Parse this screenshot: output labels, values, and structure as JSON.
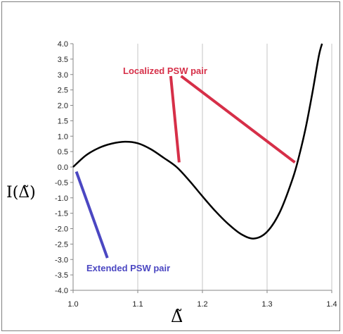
{
  "chart_data": {
    "type": "line",
    "title": "",
    "xlabel": "Δ̃",
    "ylabel": "I(Δ̃)",
    "xlim": [
      1.0,
      1.4
    ],
    "ylim": [
      -4.0,
      4.0
    ],
    "x_ticks": [
      "1.0",
      "1.1",
      "1.2",
      "1.3",
      "1.4"
    ],
    "y_ticks": [
      "4.0",
      "3.5",
      "3.0",
      "2.5",
      "2.0",
      "1.5",
      "1.0",
      "0.5",
      "0.0",
      "-0.5",
      "-1.0",
      "-1.5",
      "-2.0",
      "-2.5",
      "-3.0",
      "-3.5",
      "-4.0"
    ],
    "grid": "vertical",
    "line_color": "#000000",
    "series": [
      {
        "points": [
          [
            1.0,
            0.0
          ],
          [
            1.02,
            0.38
          ],
          [
            1.04,
            0.62
          ],
          [
            1.06,
            0.76
          ],
          [
            1.08,
            0.82
          ],
          [
            1.1,
            0.77
          ],
          [
            1.12,
            0.58
          ],
          [
            1.14,
            0.3
          ],
          [
            1.16,
            0.0
          ],
          [
            1.18,
            -0.45
          ],
          [
            1.2,
            -0.95
          ],
          [
            1.22,
            -1.43
          ],
          [
            1.24,
            -1.85
          ],
          [
            1.26,
            -2.18
          ],
          [
            1.28,
            -2.32
          ],
          [
            1.3,
            -2.1
          ],
          [
            1.32,
            -1.45
          ],
          [
            1.34,
            -0.35
          ],
          [
            1.35,
            0.4
          ],
          [
            1.36,
            1.3
          ],
          [
            1.37,
            2.4
          ],
          [
            1.38,
            3.6
          ],
          [
            1.385,
            4.0
          ]
        ]
      }
    ],
    "annotations": [
      {
        "text": "Localized PSW pair",
        "color": "#d62f48",
        "pointers": [
          {
            "from": [
              1.151,
              2.95
            ],
            "to": [
              1.164,
              0.15
            ]
          },
          {
            "from": [
              1.167,
              2.95
            ],
            "to": [
              1.343,
              0.15
            ]
          }
        ]
      },
      {
        "text": "Extended PSW pair",
        "color": "#4b47c2",
        "pointers": [
          {
            "from": [
              1.005,
              -0.15
            ],
            "to": [
              1.053,
              -2.95
            ]
          }
        ]
      }
    ]
  }
}
